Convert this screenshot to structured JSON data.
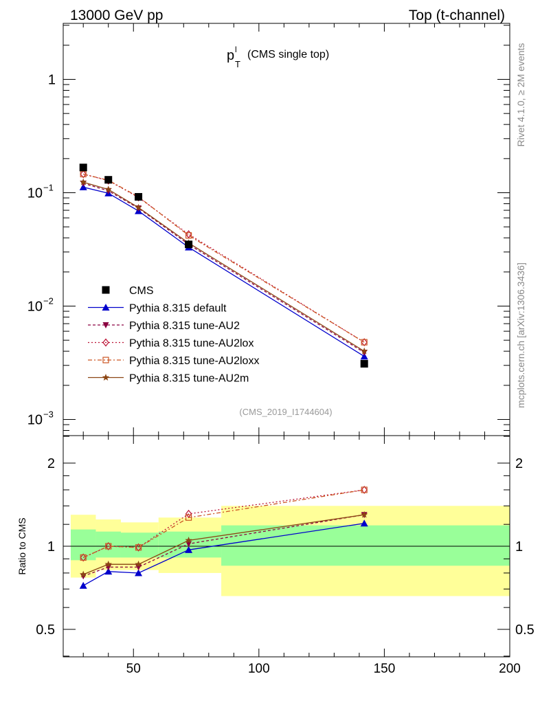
{
  "header": {
    "left_label": "13000 GeV pp",
    "right_label": "Top (t-channel)"
  },
  "side_labels": {
    "rivet": "Rivet 4.1.0, ≥ 2M events",
    "mcplots": "mcplots.cern.ch [arXiv:1306.3436]"
  },
  "chart_data": {
    "type": "line",
    "title": {
      "main": "p",
      "sup": "l",
      "sub": "T",
      "suffix": "(CMS single top)"
    },
    "analysis_tag": "(CMS_2019_I1744604)",
    "x": [
      30,
      40,
      52,
      72,
      142
    ],
    "xlim": [
      22,
      200
    ],
    "x_ticks": [
      50,
      100,
      150,
      200
    ],
    "main_panel": {
      "yscale": "log",
      "ylim": [
        0.00072,
        3.0
      ],
      "y_ticks": [
        {
          "value": 1,
          "label": "1"
        },
        {
          "value": 0.1,
          "label": "10",
          "exp": "−1"
        },
        {
          "value": 0.01,
          "label": "10",
          "exp": "−2"
        },
        {
          "value": 0.001,
          "label": "10",
          "exp": "−3"
        }
      ],
      "data": {
        "name": "CMS",
        "color": "#000000",
        "marker": "square",
        "values": [
          0.167,
          0.13,
          0.092,
          0.035,
          0.0031
        ]
      },
      "series": [
        {
          "name": "Pythia 8.315 default",
          "color": "#0000cc",
          "marker": "triangle-up",
          "dash": "",
          "values": [
            0.112,
            0.099,
            0.069,
            0.033,
            0.0036
          ]
        },
        {
          "name": "Pythia 8.315 tune-AU2",
          "color": "#8b0040",
          "marker": "triangle-down",
          "dash": "4,3",
          "values": [
            0.121,
            0.104,
            0.073,
            0.035,
            0.0039
          ]
        },
        {
          "name": "Pythia 8.315 tune-AU2lox",
          "color": "#bb1133",
          "marker": "diamond-open",
          "dash": "2,3",
          "values": [
            0.146,
            0.128,
            0.091,
            0.043,
            0.0048
          ]
        },
        {
          "name": "Pythia 8.315 tune-AU2loxx",
          "color": "#cc5522",
          "marker": "square-open",
          "dash": "6,3,2,3",
          "values": [
            0.146,
            0.129,
            0.092,
            0.042,
            0.0048
          ]
        },
        {
          "name": "Pythia 8.315 tune-AU2m",
          "color": "#8b4513",
          "marker": "star",
          "dash": "",
          "values": [
            0.124,
            0.107,
            0.074,
            0.036,
            0.004
          ]
        }
      ]
    },
    "ratio_panel": {
      "ylabel": "Ratio to CMS",
      "yscale": "log",
      "ylim": [
        0.4,
        2.6
      ],
      "y_ticks": [
        {
          "value": 0.5,
          "label": "0.5"
        },
        {
          "value": 1,
          "label": "1"
        },
        {
          "value": 2,
          "label": "2"
        }
      ],
      "bands": [
        {
          "x0": 25,
          "x1": 35,
          "green": [
            0.89,
            1.15
          ],
          "yellow": [
            0.77,
            1.3
          ]
        },
        {
          "x0": 35,
          "x1": 45,
          "green": [
            0.91,
            1.13
          ],
          "yellow": [
            0.82,
            1.25
          ]
        },
        {
          "x0": 45,
          "x1": 60,
          "green": [
            0.91,
            1.12
          ],
          "yellow": [
            0.82,
            1.22
          ]
        },
        {
          "x0": 60,
          "x1": 85,
          "green": [
            0.91,
            1.13
          ],
          "yellow": [
            0.8,
            1.27
          ]
        },
        {
          "x0": 85,
          "x1": 200,
          "green": [
            0.85,
            1.19
          ],
          "yellow": [
            0.66,
            1.4
          ]
        }
      ],
      "series": [
        {
          "name": "Pythia 8.315 default",
          "values": [
            0.72,
            0.81,
            0.8,
            0.97,
            1.21
          ]
        },
        {
          "name": "Pythia 8.315 tune-AU2",
          "values": [
            0.78,
            0.84,
            0.84,
            1.02,
            1.3
          ]
        },
        {
          "name": "Pythia 8.315 tune-AU2lox",
          "values": [
            0.91,
            1.0,
            0.99,
            1.31,
            1.6
          ]
        },
        {
          "name": "Pythia 8.315 tune-AU2loxx",
          "values": [
            0.91,
            1.0,
            0.99,
            1.27,
            1.6
          ]
        },
        {
          "name": "Pythia 8.315 tune-AU2m",
          "values": [
            0.79,
            0.86,
            0.86,
            1.05,
            1.3
          ]
        }
      ]
    }
  }
}
